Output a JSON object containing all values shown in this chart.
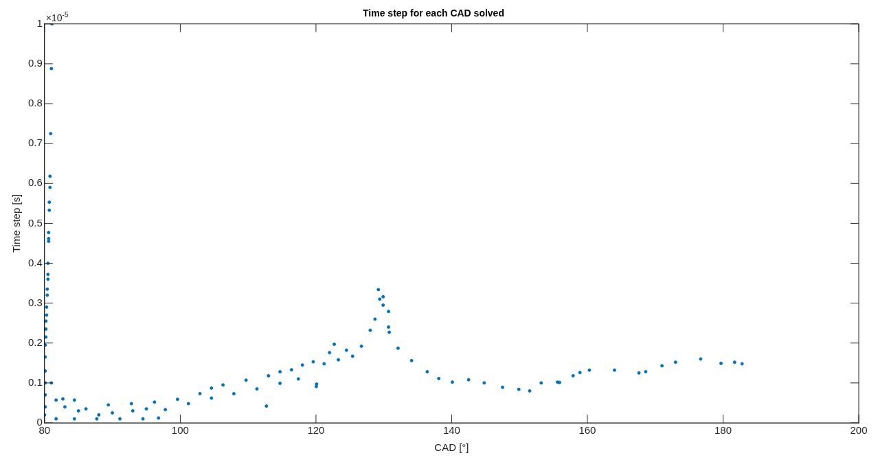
{
  "chart_data": {
    "type": "scatter",
    "title": "Time step for each CAD solved",
    "xlabel": "CAD [°]",
    "ylabel": "Time step [s]",
    "annotations": [
      "×10$^{-5}$"
    ],
    "xlim": [
      80,
      200
    ],
    "xticks": [
      80,
      100,
      120,
      140,
      160,
      180,
      200
    ],
    "ylim": [
      0,
      1
    ],
    "yticks": [
      0,
      0.1,
      0.2,
      0.3,
      0.4,
      0.5,
      0.6,
      0.7,
      0.8,
      0.9,
      1
    ],
    "grid": false,
    "legend": false,
    "marker": "circle",
    "series": [
      {
        "color": "#0072bd",
        "x": [
          81.1,
          81.0,
          80.9,
          80.8,
          80.8,
          80.7,
          80.7,
          80.6,
          80.6,
          80.6,
          80.5,
          80.5,
          80.5,
          80.4,
          80.4,
          80.3,
          80.3,
          80.2,
          80.2,
          80.2,
          80.1,
          80.1,
          80.1,
          80.1,
          80.1,
          80.1,
          80.0,
          81.0,
          81.7,
          82.7,
          84.4,
          86.1,
          89.4,
          92.8,
          96.2,
          99.6,
          102.9,
          104.6,
          106.3,
          109.7,
          113.0,
          114.7,
          116.4,
          118.0,
          119.6,
          81.7,
          84.4,
          87.7,
          91.1,
          94.5,
          96.8,
          97.8,
          101.2,
          104.6,
          107.9,
          111.3,
          112.7,
          114.7,
          117.4,
          83.0,
          85.0,
          88.0,
          90.0,
          93.0,
          95.0,
          120.05,
          120.1,
          121.2,
          122.0,
          122.7,
          123.3,
          124.5,
          125.4,
          126.7,
          128.0,
          128.7,
          129.2,
          129.4,
          129.9,
          129.9,
          130.7,
          130.7,
          130.8,
          132.1,
          134.1,
          136.4,
          138.1,
          140.1,
          142.5,
          144.8,
          147.5,
          149.9,
          151.5,
          153.2,
          155.6,
          155.9,
          157.9,
          158.9,
          160.3,
          164.0,
          167.6,
          168.6,
          171.0,
          173.0,
          176.7,
          179.7,
          181.7,
          182.8
        ],
        "values": [
          1.0,
          0.888,
          0.725,
          0.618,
          0.59,
          0.553,
          0.533,
          0.477,
          0.462,
          0.455,
          0.4,
          0.372,
          0.36,
          0.335,
          0.32,
          0.29,
          0.27,
          0.255,
          0.235,
          0.215,
          0.195,
          0.165,
          0.13,
          0.1,
          0.07,
          0.04,
          0.02,
          0.1,
          0.057,
          0.06,
          0.057,
          0.035,
          0.045,
          0.048,
          0.052,
          0.059,
          0.073,
          0.087,
          0.095,
          0.107,
          0.118,
          0.128,
          0.133,
          0.145,
          0.153,
          0.01,
          0.01,
          0.01,
          0.01,
          0.01,
          0.012,
          0.033,
          0.048,
          0.062,
          0.073,
          0.085,
          0.042,
          0.099,
          0.11,
          0.04,
          0.03,
          0.02,
          0.025,
          0.03,
          0.035,
          0.091,
          0.097,
          0.148,
          0.176,
          0.197,
          0.158,
          0.182,
          0.167,
          0.192,
          0.232,
          0.26,
          0.334,
          0.31,
          0.316,
          0.295,
          0.279,
          0.24,
          0.227,
          0.187,
          0.156,
          0.128,
          0.111,
          0.102,
          0.108,
          0.1,
          0.089,
          0.084,
          0.08,
          0.1,
          0.102,
          0.101,
          0.118,
          0.126,
          0.132,
          0.132,
          0.125,
          0.128,
          0.143,
          0.152,
          0.16,
          0.149,
          0.152,
          0.148
        ]
      }
    ]
  }
}
